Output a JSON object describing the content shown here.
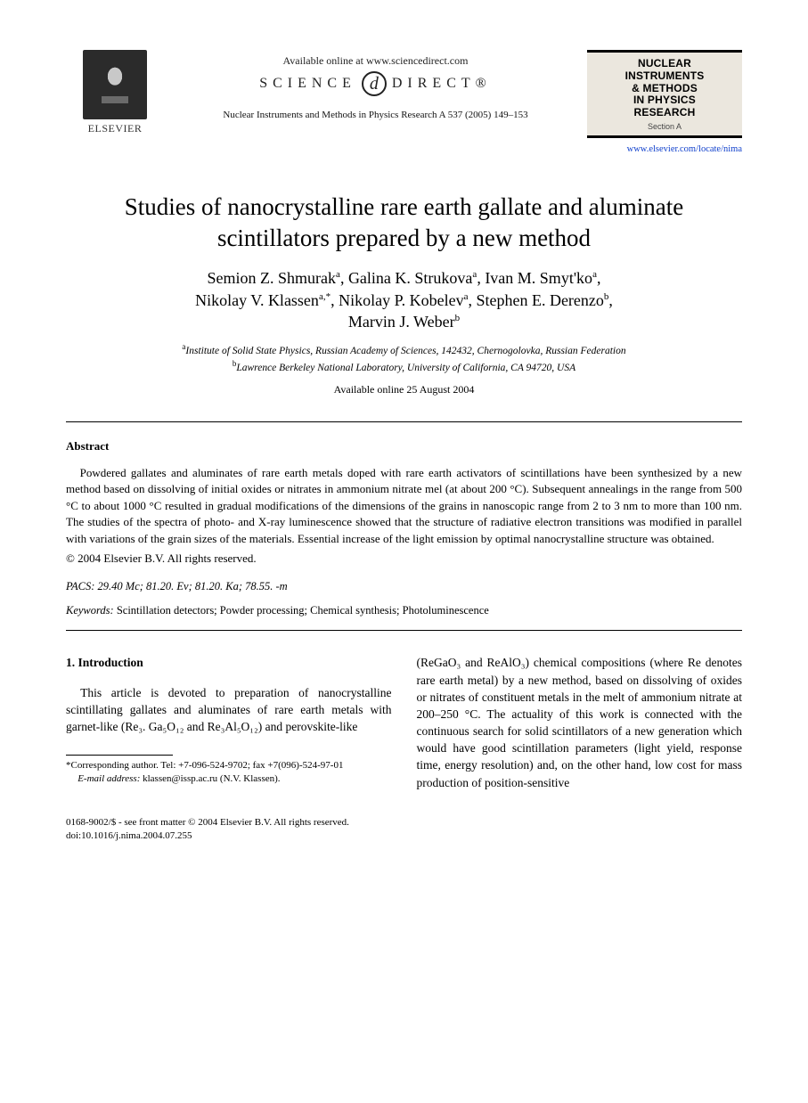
{
  "header": {
    "publisher_name": "ELSEVIER",
    "available_online": "Available online at www.sciencedirect.com",
    "sd_left": "SCIENCE",
    "sd_right": "DIRECT®",
    "sd_d": "d",
    "citation": "Nuclear Instruments and Methods in Physics Research A 537 (2005) 149–153",
    "journal_banner_l1": "NUCLEAR",
    "journal_banner_l2": "INSTRUMENTS",
    "journal_banner_l3": "& METHODS",
    "journal_banner_l4": "IN PHYSICS",
    "journal_banner_l5": "RESEARCH",
    "journal_section": "Section A",
    "journal_link": "www.elsevier.com/locate/nima"
  },
  "title_l1": "Studies of nanocrystalline rare earth gallate and aluminate",
  "title_l2": "scintillators prepared by a new method",
  "authors": {
    "a1": "Semion Z. Shmurak",
    "a1s": "a",
    "a2": "Galina K. Strukova",
    "a2s": "a",
    "a3": "Ivan M. Smyt'ko",
    "a3s": "a",
    "a4": "Nikolay V. Klassen",
    "a4s": "a,*",
    "a5": "Nikolay P. Kobelev",
    "a5s": "a",
    "a6": "Stephen E. Derenzo",
    "a6s": "b",
    "a7": "Marvin J. Weber",
    "a7s": "b"
  },
  "affiliations": {
    "a": "Institute of Solid State Physics, Russian Academy of Sciences, 142432, Chernogolovka, Russian Federation",
    "b": "Lawrence Berkeley National Laboratory, University of California, CA 94720, USA"
  },
  "online_date": "Available online 25 August 2004",
  "abstract": {
    "heading": "Abstract",
    "body": "Powdered gallates and aluminates of rare earth metals doped with rare earth activators of scintillations have been synthesized by a new method based on dissolving of initial oxides or nitrates in ammonium nitrate mel (at about 200 °C). Subsequent annealings in the range from 500 °C to about 1000 °C resulted in gradual modifications of the dimensions of the grains in nanoscopic range from 2 to 3 nm to more than 100 nm. The studies of the spectra of photo- and X-ray luminescence showed that the structure of radiative electron transitions was modified in parallel with variations of the grain sizes of the materials. Essential increase of the light emission by optimal nanocrystalline structure was obtained.",
    "copyright": "© 2004 Elsevier B.V. All rights reserved."
  },
  "pacs": {
    "label": "PACS:",
    "value": " 29.40 Mc; 81.20. Ev; 81.20. Ka; 78.55. -m"
  },
  "keywords": {
    "label": "Keywords:",
    "value": " Scintillation detectors; Powder processing; Chemical synthesis; Photoluminescence"
  },
  "section1": {
    "heading": "1. Introduction",
    "col1_para": "This article is devoted to preparation of nanocrystalline scintillating gallates and aluminates of rare earth metals with garnet-like (Re₃. Ga₅O₁₂ and Re₃Al₅O₁₂) and perovskite-like",
    "col2_para": "(ReGaO₃ and ReAlO₃) chemical compositions (where Re denotes rare earth metal) by a new method, based on dissolving of oxides or nitrates of constituent metals in the melt of ammonium nitrate at 200–250 °C. The actuality of this work is connected with the continuous search for solid scintillators of a new generation which would have good scintillation parameters (light yield, response time, energy resolution) and, on the other hand, low cost for mass production of position-sensitive"
  },
  "footnote": {
    "corr": "*Corresponding author. Tel: +7-096-524-9702; fax +7(096)-524-97-01",
    "email_label": "E-mail address:",
    "email_value": " klassen@issp.ac.ru (N.V. Klassen)."
  },
  "footer": {
    "line1": "0168-9002/$ - see front matter © 2004 Elsevier B.V. All rights reserved.",
    "line2": "doi:10.1016/j.nima.2004.07.255"
  },
  "colors": {
    "text": "#000000",
    "link": "#1040cc",
    "banner_bg": "#ebe7de",
    "page_bg": "#ffffff"
  }
}
